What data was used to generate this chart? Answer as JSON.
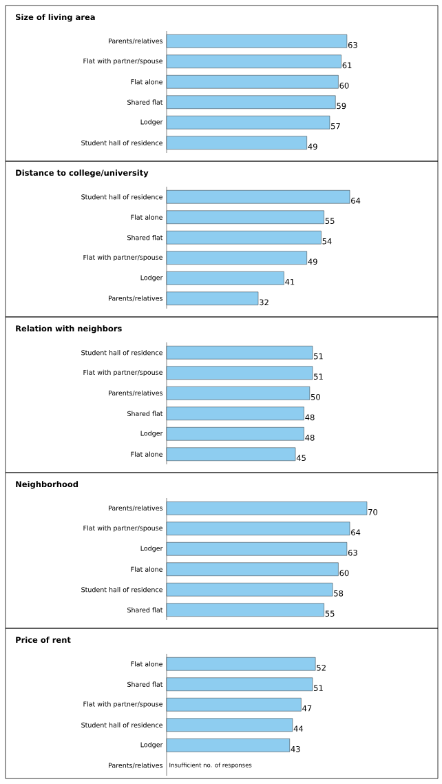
{
  "chart_data": [
    {
      "type": "bar",
      "orientation": "horizontal",
      "title": "Size of living area",
      "categories": [
        "Parents/relatives",
        "Flat with partner/spouse",
        "Flat alone",
        "Shared flat",
        "Lodger",
        "Student hall of residence"
      ],
      "values": [
        63,
        61,
        60,
        59,
        57,
        49
      ],
      "color": "#8ecdf0",
      "data_labels": true
    },
    {
      "type": "bar",
      "orientation": "horizontal",
      "title": "Distance to college/university",
      "categories": [
        "Student hall of residence",
        "Flat alone",
        "Shared flat",
        "Flat with partner/spouse",
        "Lodger",
        "Parents/relatives"
      ],
      "values": [
        64,
        55,
        54,
        49,
        41,
        32
      ],
      "color": "#8ecdf0",
      "data_labels": true
    },
    {
      "type": "bar",
      "orientation": "horizontal",
      "title": "Relation with neighbors",
      "categories": [
        "Student hall of residence",
        "Flat with partner/spouse",
        "Parents/relatives",
        "Shared flat",
        "Lodger",
        "Flat alone"
      ],
      "values": [
        51,
        51,
        50,
        48,
        48,
        45
      ],
      "color": "#8ecdf0",
      "data_labels": true
    },
    {
      "type": "bar",
      "orientation": "horizontal",
      "title": "Neighborhood",
      "categories": [
        "Parents/relatives",
        "Flat with partner/spouse",
        "Lodger",
        "Flat alone",
        "Student hall of residence",
        "Shared flat"
      ],
      "values": [
        70,
        64,
        63,
        60,
        58,
        55
      ],
      "color": "#8ecdf0",
      "data_labels": true
    },
    {
      "type": "bar",
      "orientation": "horizontal",
      "title": "Price of rent",
      "categories": [
        "Flat alone",
        "Shared flat",
        "Flat with partner/spouse",
        "Student hall of residence",
        "Lodger",
        "Parents/relatives"
      ],
      "values": [
        52,
        51,
        47,
        44,
        43,
        null
      ],
      "color": "#8ecdf0",
      "data_labels": true,
      "annotations": [
        "Insufficient no. of responses"
      ]
    }
  ]
}
